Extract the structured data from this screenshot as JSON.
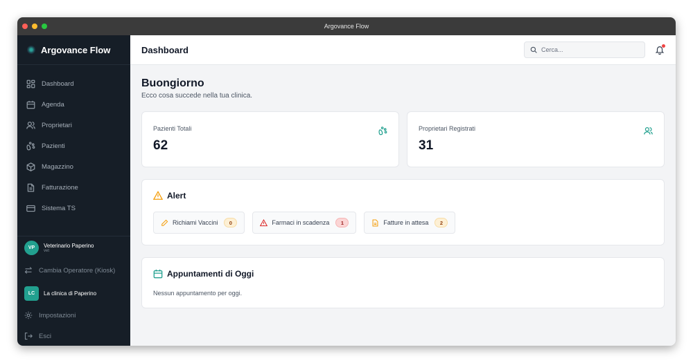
{
  "window": {
    "title": "Argovance Flow"
  },
  "sidebar": {
    "brand": "Argovance Flow",
    "items": [
      {
        "label": "Dashboard",
        "icon": "dashboard-icon"
      },
      {
        "label": "Agenda",
        "icon": "calendar-icon"
      },
      {
        "label": "Proprietari",
        "icon": "users-icon"
      },
      {
        "label": "Pazienti",
        "icon": "paw-icon"
      },
      {
        "label": "Magazzino",
        "icon": "box-icon"
      },
      {
        "label": "Fatturazione",
        "icon": "file-icon"
      },
      {
        "label": "Sistema TS",
        "icon": "card-icon"
      }
    ],
    "user": {
      "initials": "VP",
      "name": "Veterinario Paperino",
      "role": "vet"
    },
    "switch_operator": "Cambia Operatore (Kiosk)",
    "clinic": {
      "initials": "LC",
      "name": "La clinica di Paperino"
    },
    "settings": "Impostazioni",
    "logout": "Esci"
  },
  "header": {
    "title": "Dashboard",
    "search_placeholder": "Cerca...",
    "notification_dot": true
  },
  "main": {
    "greeting": "Buongiorno",
    "subtitle": "Ecco cosa succede nella tua clinica.",
    "stats": [
      {
        "label": "Pazienti Totali",
        "value": "62"
      },
      {
        "label": "Proprietari Registrati",
        "value": "31"
      }
    ],
    "alerts": {
      "title": "Alert",
      "items": [
        {
          "label": "Richiami Vaccini",
          "count": "0",
          "color": "#f59e0b"
        },
        {
          "label": "Farmaci in scadenza",
          "count": "1",
          "color": "#dc2626"
        },
        {
          "label": "Fatture in attesa",
          "count": "2",
          "color": "#f59e0b"
        }
      ]
    },
    "appointments": {
      "title": "Appuntamenti di Oggi",
      "empty": "Nessun appuntamento per oggi."
    }
  },
  "colors": {
    "accent": "#22a08f",
    "sidebar": "#161e27"
  }
}
